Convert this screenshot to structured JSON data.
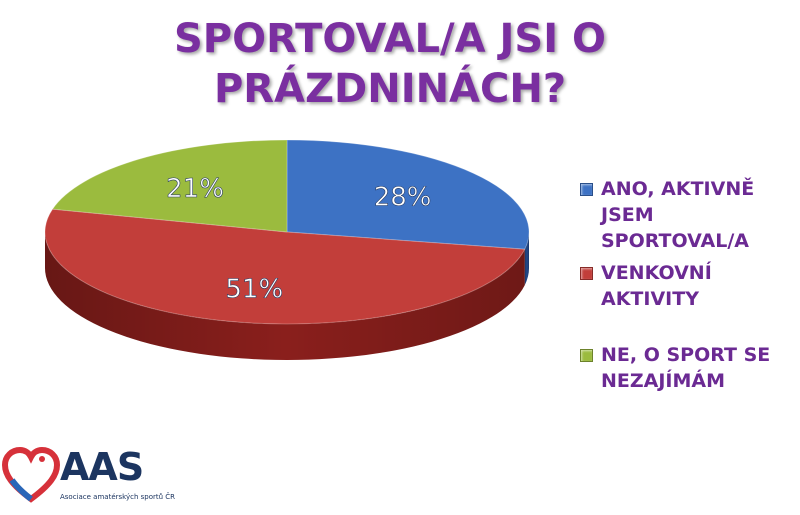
{
  "chart_data": {
    "type": "pie",
    "title_lines": [
      "SPORTOVAL/A JSI O",
      "PRÁZDNINÁCH?"
    ],
    "slices": [
      {
        "label": "ANO, AKTIVNĚ JSEM SPORTOVAL/A",
        "legend_lines": [
          "ANO, AKTIVNĚ",
          "JSEM",
          "SPORTOVAL/A"
        ],
        "value": 28,
        "display": "28%",
        "color": "#3d72c4",
        "side_color": "#22488a"
      },
      {
        "label": "VENKOVNÍ AKTIVITY",
        "legend_lines": [
          "VENKOVNÍ",
          "AKTIVITY"
        ],
        "value": 51,
        "display": "51%",
        "color": "#c23e3a",
        "side_color": "#8a1f1c"
      },
      {
        "label": "NE, O SPORT SE NEZAJÍMÁM",
        "legend_lines": [
          "NE, O SPORT SE",
          "NEZAJÍMÁM"
        ],
        "value": 21,
        "display": "21%",
        "color": "#9bbb3e",
        "side_color": "#5f7a20"
      }
    ],
    "legend_position": "right"
  },
  "logo": {
    "text": "AAS",
    "subtitle": "Asociace amatérských sportů ČR"
  },
  "colors": {
    "title": "#7a2fa0",
    "legend_text": "#6b2a93",
    "logo_text": "#1c3560"
  }
}
